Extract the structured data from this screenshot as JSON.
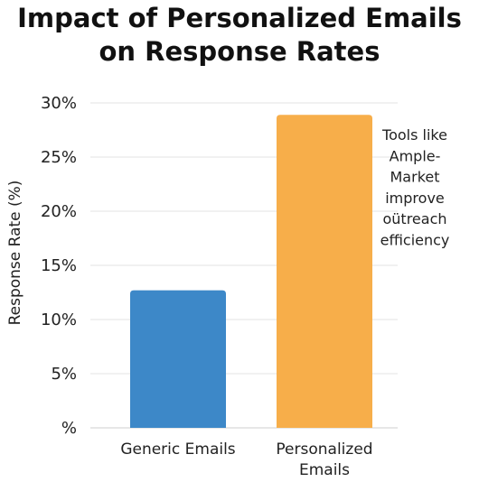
{
  "chart_data": {
    "type": "bar",
    "title_lines": [
      "Impact of Personalized Emails",
      "on Response Rates"
    ],
    "xlabel": "",
    "ylabel": "Response Rate (%)",
    "ylim": [
      0,
      30
    ],
    "yticks": [
      {
        "value": 30,
        "label": "30%"
      },
      {
        "value": 25,
        "label": "25%"
      },
      {
        "value": 20,
        "label": "20%"
      },
      {
        "value": 15,
        "label": "15%"
      },
      {
        "value": 10,
        "label": "10%"
      },
      {
        "value": 5,
        "label": "5%"
      },
      {
        "value": 0,
        "label": "%"
      }
    ],
    "categories": [
      {
        "lines": [
          "Generic Emails"
        ]
      },
      {
        "lines": [
          "Personalized",
          "Emails"
        ]
      }
    ],
    "values": [
      12.7,
      28.9
    ],
    "colors": [
      "#3d88c8",
      "#f7ae4a"
    ],
    "grid": true,
    "annotation_lines": [
      "Tools like",
      "Ample-",
      "Market",
      "improve",
      "oütreach",
      "efficiency"
    ]
  }
}
